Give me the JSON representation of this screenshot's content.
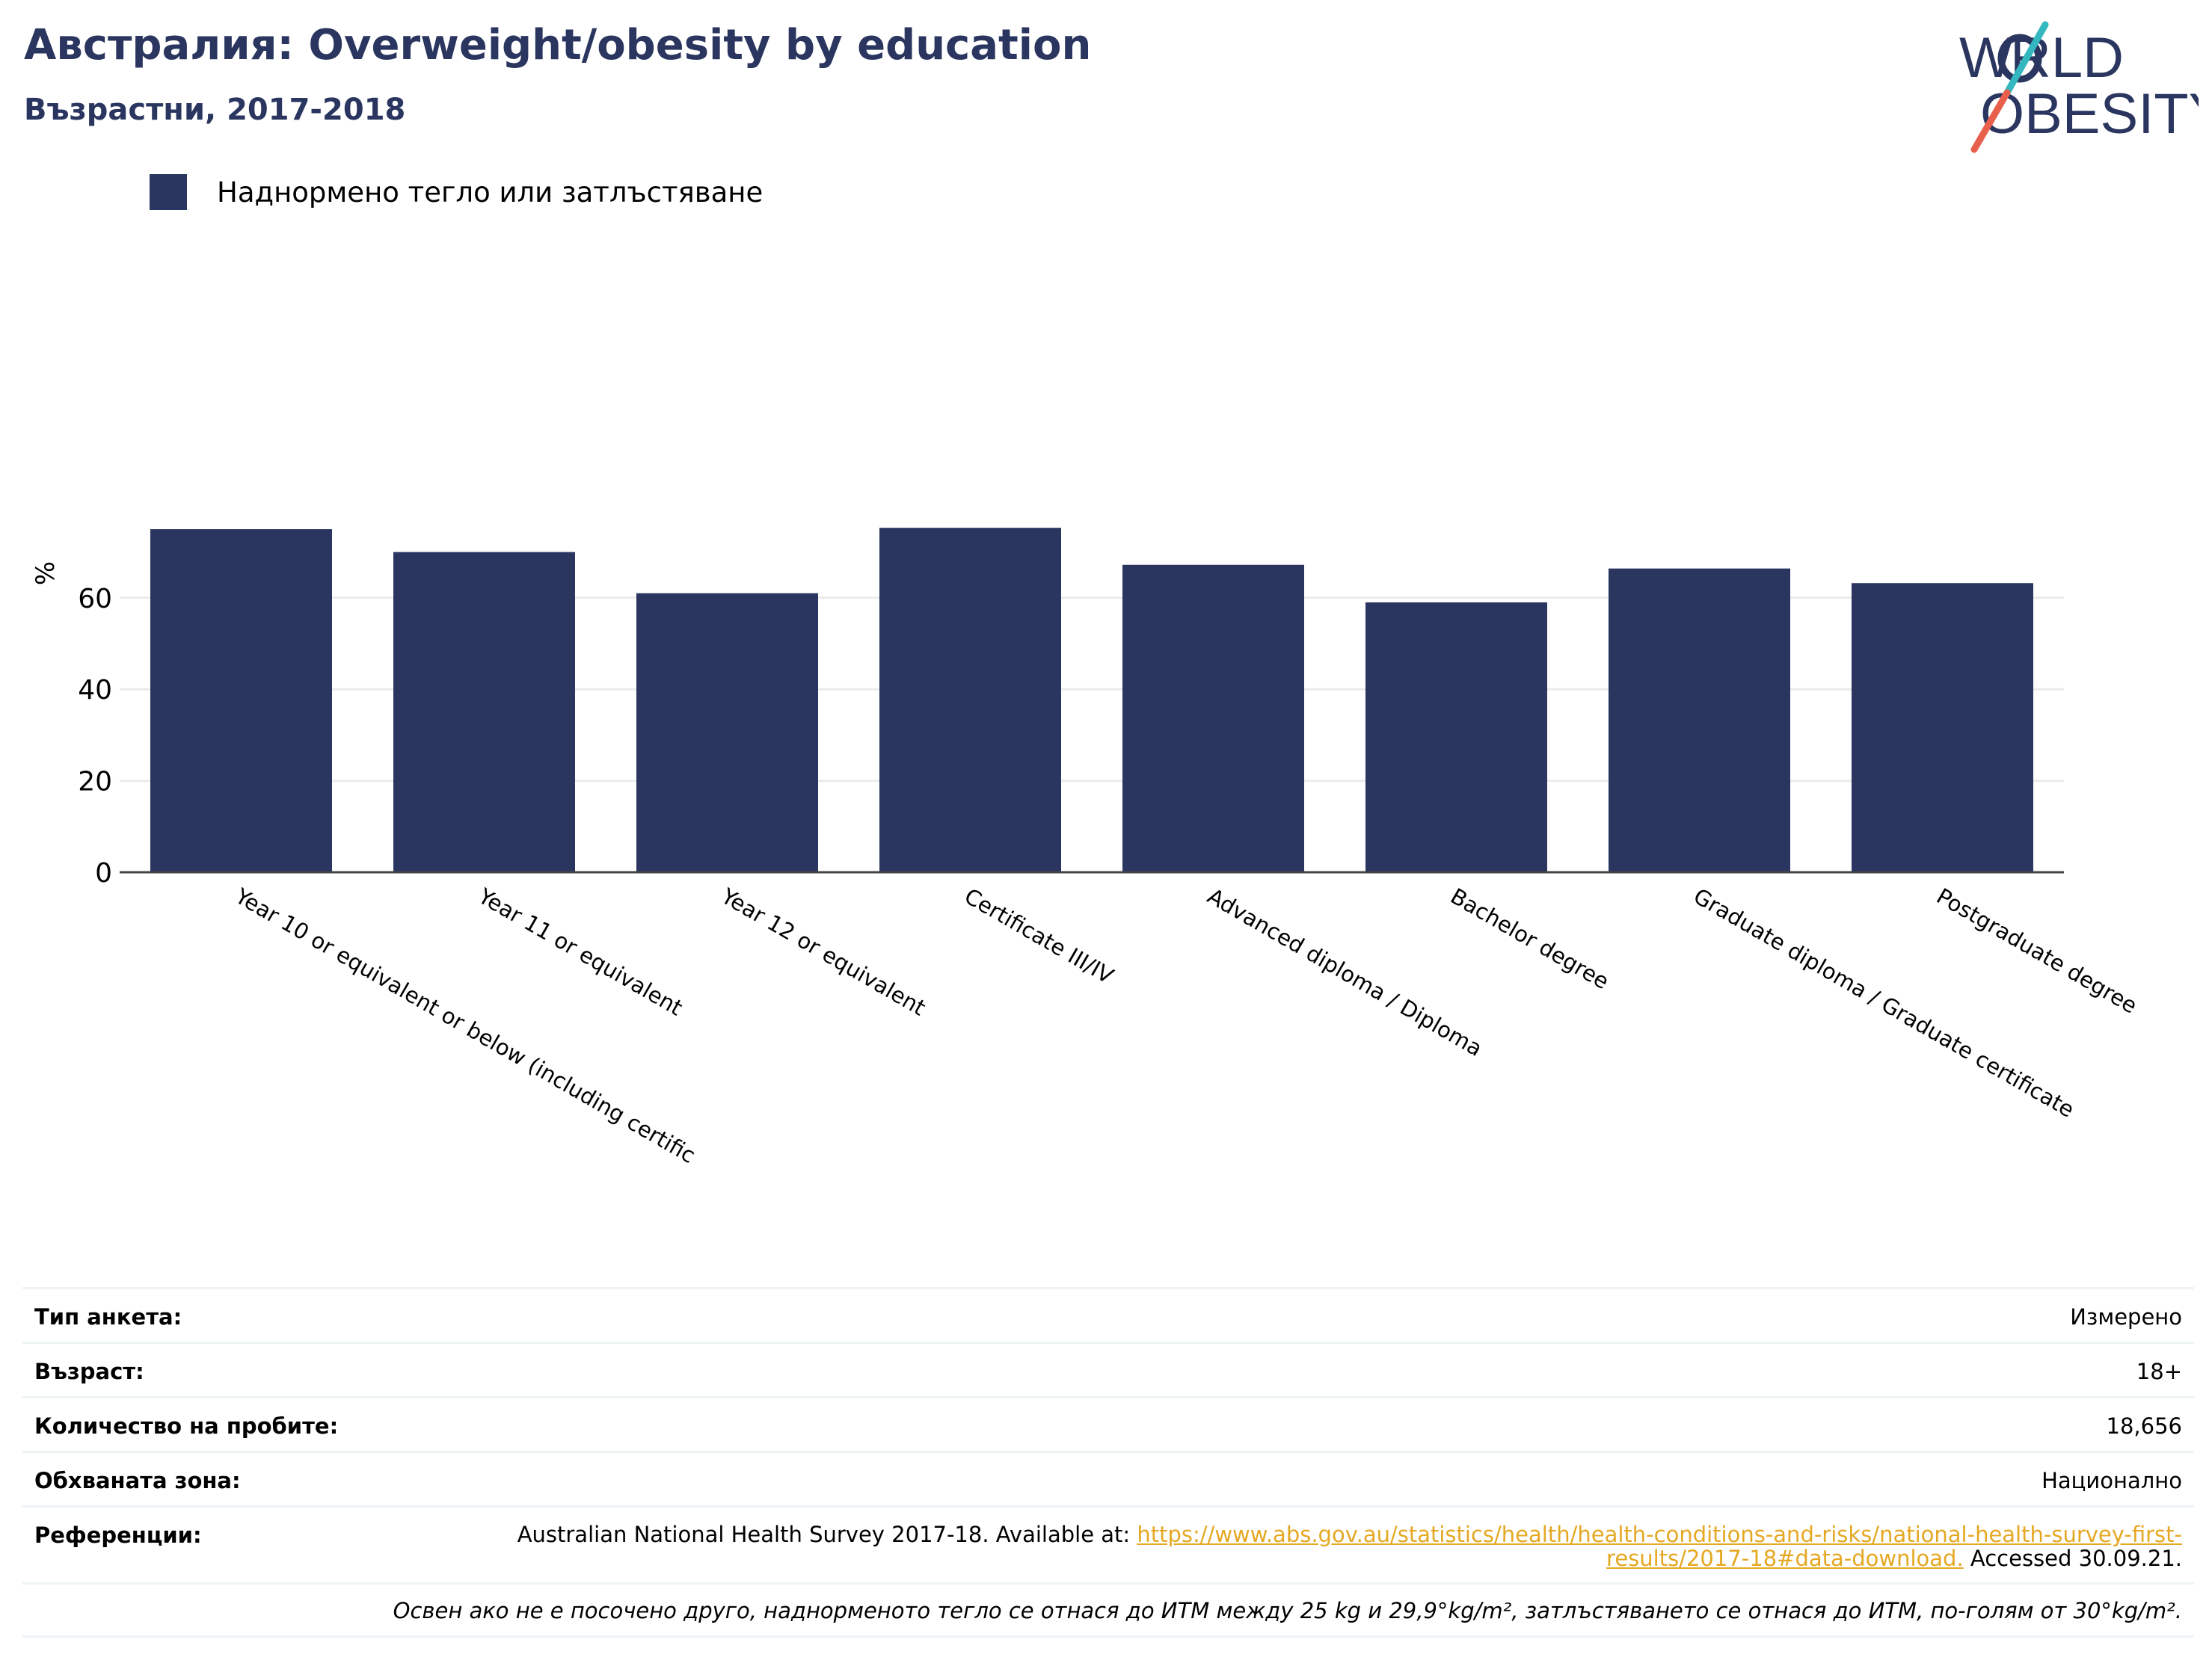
{
  "title": "Австралия: Overweight/obesity by education",
  "subtitle": "Възрастни, 2017-2018",
  "logo": {
    "line1": "WORLD",
    "line2": "OBESITY"
  },
  "colors": {
    "bar": "#2a365f",
    "title": "#2a365f",
    "grid": "#ebebeb",
    "axis": "#444444",
    "link": "#e5a823",
    "logo_slash_red": "#e8604c",
    "logo_slash_teal": "#35b7c0"
  },
  "legend": {
    "label": "Наднормено тегло или затлъстяване"
  },
  "chart_data": {
    "type": "bar",
    "ylabel": "%",
    "xlabel": "",
    "ylim": [
      0,
      80
    ],
    "yticks": [
      0,
      20,
      40,
      60
    ],
    "grid": true,
    "legend_position": "top-left",
    "categories": [
      "Year 10 or equivalent or below (including certific",
      "Year 11 or equivalent",
      "Year 12 or equivalent",
      "Certificate III/IV",
      "Advanced diploma / Diploma",
      "Bachelor degree",
      "Graduate diploma / Graduate certificate",
      "Postgraduate degree"
    ],
    "series": [
      {
        "name": "Наднормено тегло или затлъстяване",
        "values": [
          75,
          70,
          61,
          75.3,
          67.2,
          59,
          66.4,
          63.2
        ]
      }
    ]
  },
  "info": {
    "survey_type": {
      "label": "Тип анкета:",
      "value": "Измерено"
    },
    "age": {
      "label": "Възраст:",
      "value": "18+"
    },
    "sample": {
      "label": "Количество на пробите:",
      "value": "18,656"
    },
    "area": {
      "label": "Обхваната зона:",
      "value": "Национално"
    },
    "references": {
      "label": "Референции:",
      "prefix": "Australian National Health Survey 2017-18. Available at: ",
      "link": "https://www.abs.gov.au/statistics/health/health-conditions-and-risks/national-health-survey-first-results/2017-18#data-download.",
      "suffix": " Accessed 30.09.21."
    },
    "note": "Освен ако не е посочено друго, наднорменото тегло се отнася до ИТМ между 25 kg и 29,9°kg/m², затлъстяването се отнася до ИТМ, по-голям от 30°kg/m²."
  }
}
